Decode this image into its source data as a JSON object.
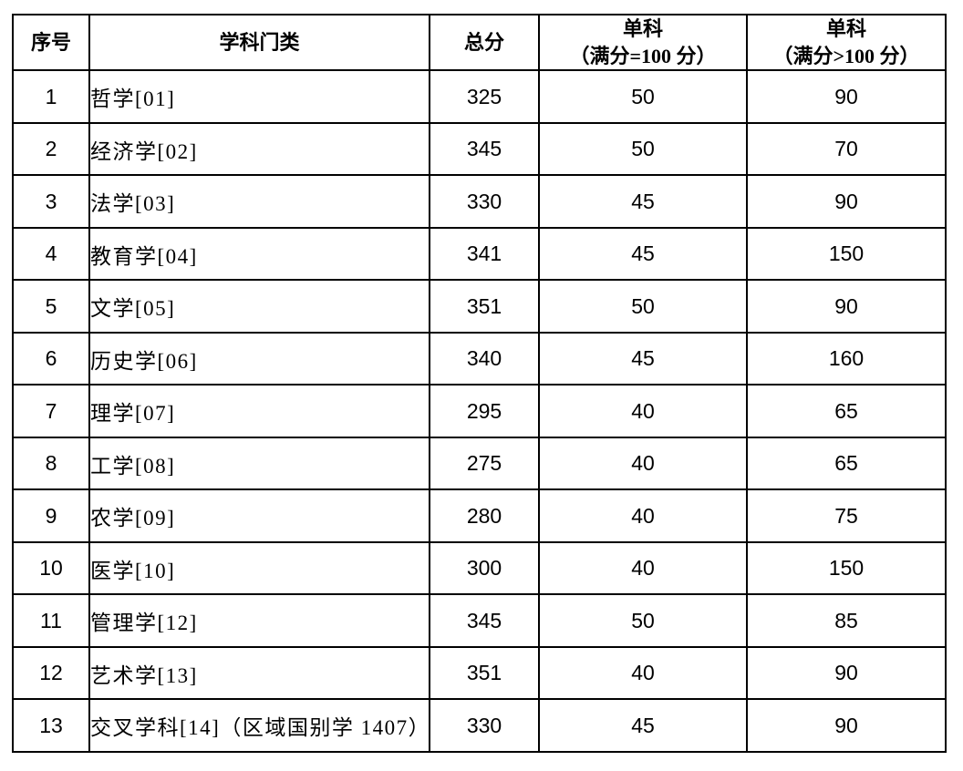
{
  "table": {
    "headers": {
      "no": "序号",
      "category": "学科门类",
      "total": "总分",
      "single_100": "单科\n（满分=100 分）",
      "single_over_100": "单科\n（满分>100 分）"
    },
    "rows": [
      {
        "no": "1",
        "category": "哲学[01]",
        "total": "325",
        "single_100": "50",
        "single_over_100": "90"
      },
      {
        "no": "2",
        "category": "经济学[02]",
        "total": "345",
        "single_100": "50",
        "single_over_100": "70"
      },
      {
        "no": "3",
        "category": "法学[03]",
        "total": "330",
        "single_100": "45",
        "single_over_100": "90"
      },
      {
        "no": "4",
        "category": "教育学[04]",
        "total": "341",
        "single_100": "45",
        "single_over_100": "150"
      },
      {
        "no": "5",
        "category": "文学[05]",
        "total": "351",
        "single_100": "50",
        "single_over_100": "90"
      },
      {
        "no": "6",
        "category": "历史学[06]",
        "total": "340",
        "single_100": "45",
        "single_over_100": "160"
      },
      {
        "no": "7",
        "category": "理学[07]",
        "total": "295",
        "single_100": "40",
        "single_over_100": "65"
      },
      {
        "no": "8",
        "category": "工学[08]",
        "total": "275",
        "single_100": "40",
        "single_over_100": "65"
      },
      {
        "no": "9",
        "category": "农学[09]",
        "total": "280",
        "single_100": "40",
        "single_over_100": "75"
      },
      {
        "no": "10",
        "category": "医学[10]",
        "total": "300",
        "single_100": "40",
        "single_over_100": "150"
      },
      {
        "no": "11",
        "category": "管理学[12]",
        "total": "345",
        "single_100": "50",
        "single_over_100": "85"
      },
      {
        "no": "12",
        "category": "艺术学[13]",
        "total": "351",
        "single_100": "40",
        "single_over_100": "90"
      },
      {
        "no": "13",
        "category": "交叉学科[14]（区域国别学 1407）",
        "total": "330",
        "single_100": "45",
        "single_over_100": "90"
      }
    ]
  }
}
